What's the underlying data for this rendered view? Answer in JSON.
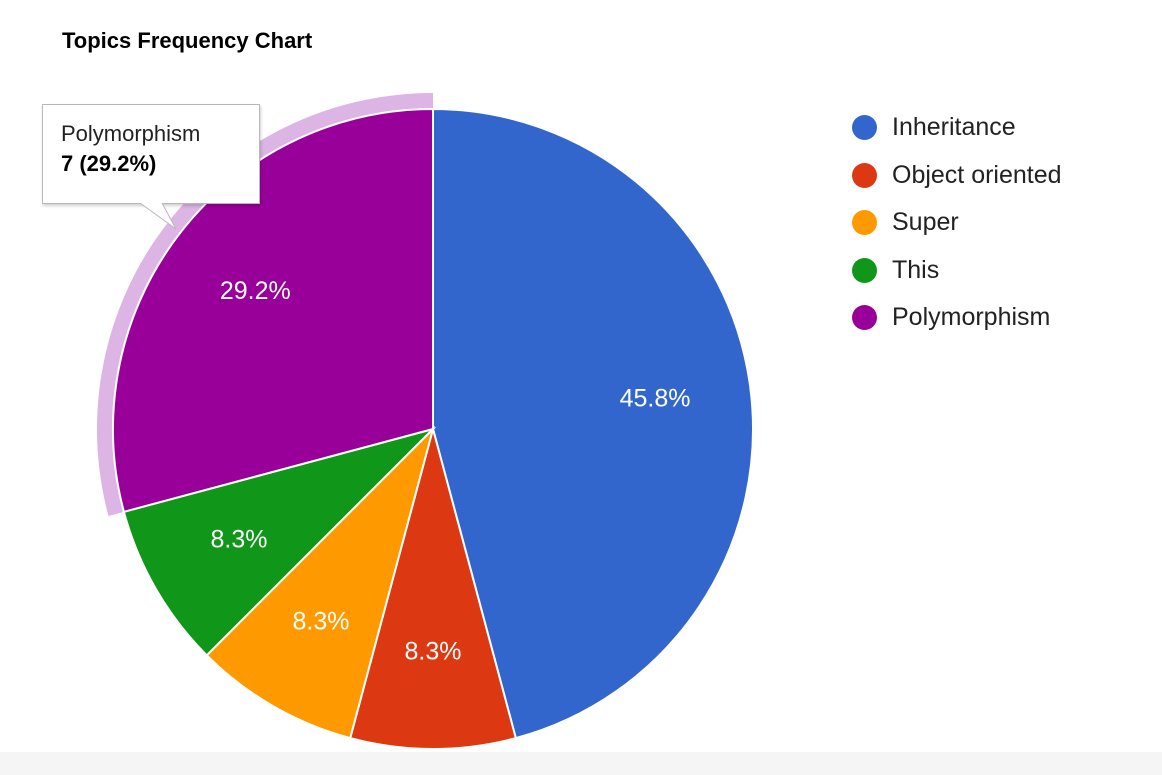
{
  "chart_data": {
    "type": "pie",
    "title": "Topics Frequency Chart",
    "slices": [
      {
        "label": "Inheritance",
        "value": 11,
        "percent_label": "45.8%",
        "color": "#3366cc"
      },
      {
        "label": "Object oriented",
        "value": 2,
        "percent_label": "8.3%",
        "color": "#dc3912"
      },
      {
        "label": "Super",
        "value": 2,
        "percent_label": "8.3%",
        "color": "#ff9900"
      },
      {
        "label": "This",
        "value": 2,
        "percent_label": "8.3%",
        "color": "#109618"
      },
      {
        "label": "Polymorphism",
        "value": 7,
        "percent_label": "29.2%",
        "color": "#990099"
      }
    ],
    "legend_position": "right",
    "highlighted_slice": "Polymorphism",
    "highlight_color": "#dcb5e4",
    "tooltip": {
      "name": "Polymorphism",
      "value_text": "7 (29.2%)"
    }
  }
}
